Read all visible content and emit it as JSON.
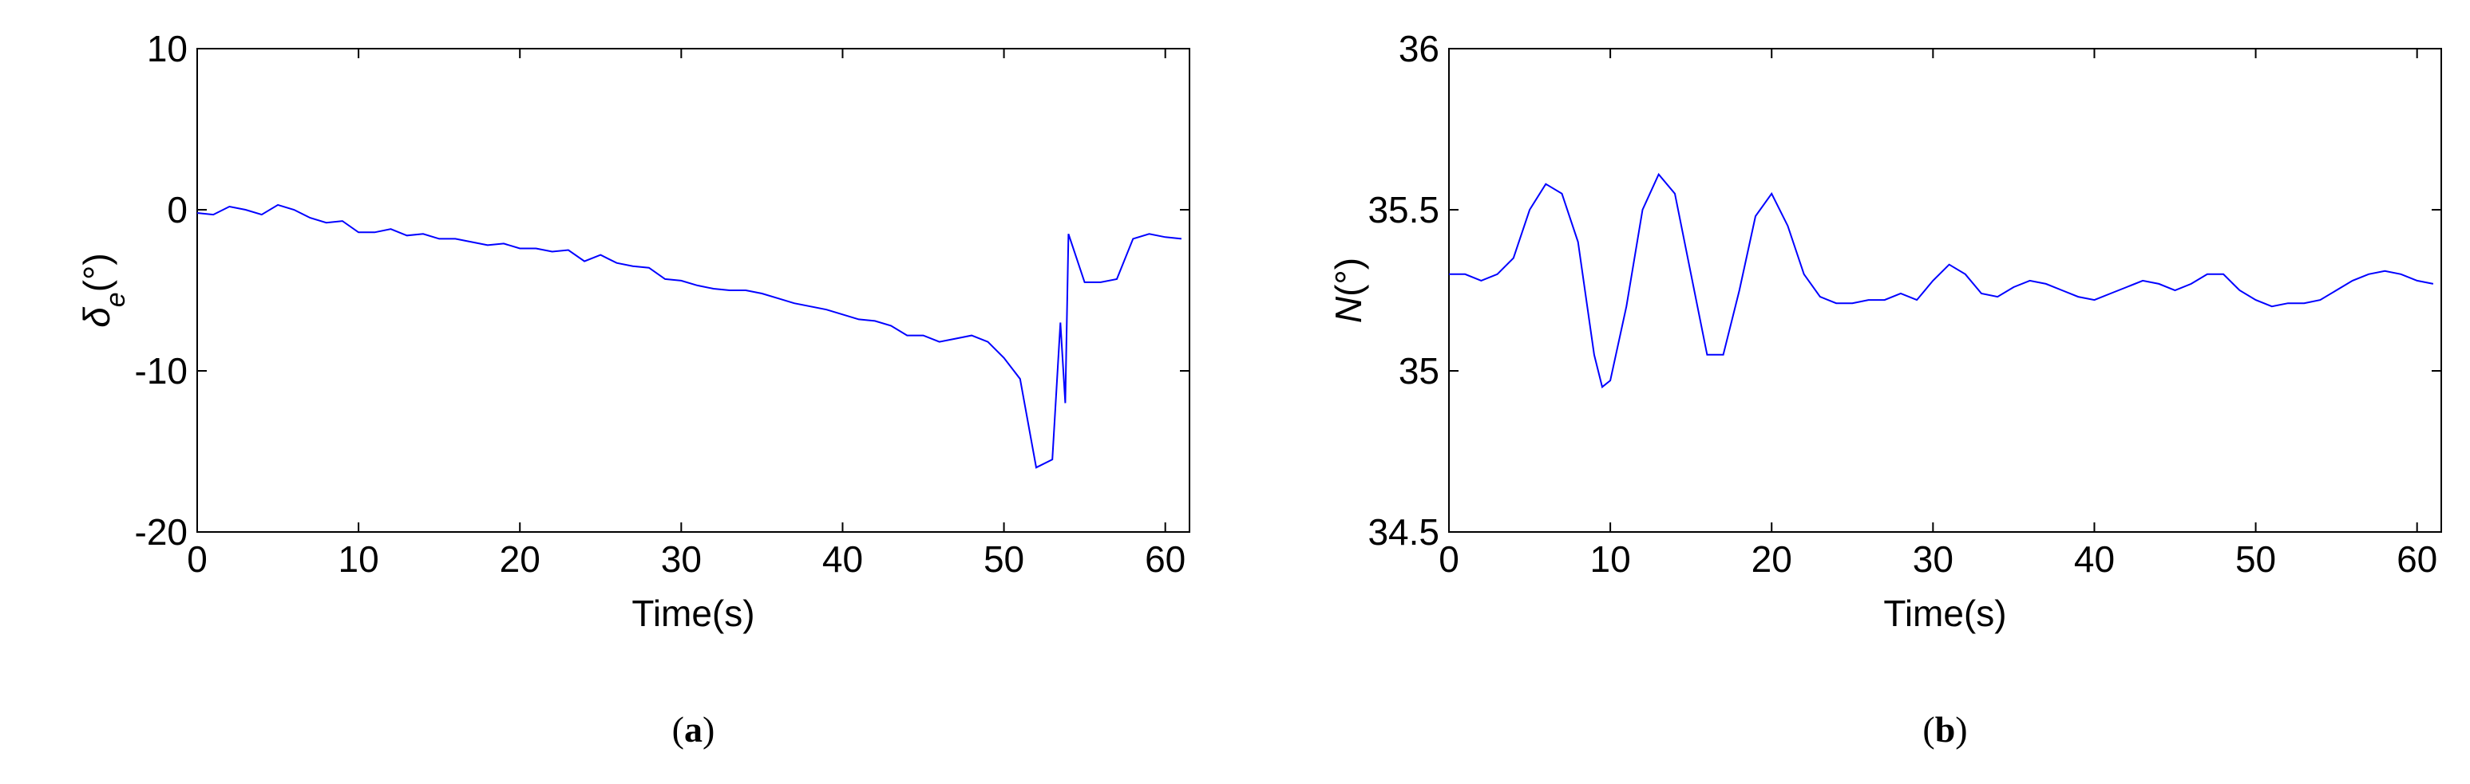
{
  "chart_data": [
    {
      "type": "line",
      "caption": "(a)",
      "xlabel": "Time(s)",
      "ylabel": [
        "δ",
        "e",
        "(°)"
      ],
      "xlim": [
        0,
        61.5
      ],
      "xticks": [
        0,
        10,
        20,
        30,
        40,
        50,
        60
      ],
      "ylim": [
        -20,
        10
      ],
      "yticks": [
        -20,
        -10,
        0,
        10
      ],
      "series": [
        {
          "color": "#0000ff",
          "x": [
            0,
            1,
            2,
            3,
            4,
            5,
            6,
            7,
            8,
            9,
            10,
            11,
            12,
            13,
            14,
            15,
            16,
            17,
            18,
            19,
            20,
            21,
            22,
            23,
            24,
            25,
            26,
            27,
            28,
            29,
            30,
            31,
            32,
            33,
            34,
            35,
            36,
            37,
            38,
            39,
            40,
            41,
            42,
            43,
            44,
            45,
            46,
            47,
            48,
            49,
            50,
            51,
            52,
            53,
            53.5,
            53.8,
            54,
            54.5,
            55,
            56,
            57,
            58,
            59,
            60,
            61
          ],
          "values": [
            -0.2,
            -0.3,
            0.2,
            0,
            -0.3,
            0.3,
            0,
            -0.5,
            -0.8,
            -0.7,
            -1.4,
            -1.4,
            -1.2,
            -1.6,
            -1.5,
            -1.8,
            -1.8,
            -2,
            -2.2,
            -2.1,
            -2.4,
            -2.4,
            -2.6,
            -2.5,
            -3.2,
            -2.8,
            -3.3,
            -3.5,
            -3.6,
            -4.3,
            -4.4,
            -4.7,
            -4.9,
            -5,
            -5,
            -5.2,
            -5.5,
            -5.8,
            -6,
            -6.2,
            -6.5,
            -6.8,
            -6.9,
            -7.2,
            -7.8,
            -7.8,
            -8.2,
            -8,
            -7.8,
            -8.2,
            -9.2,
            -10.5,
            -16,
            -15.5,
            -7,
            -12,
            -1.5,
            -3,
            -4.5,
            -4.5,
            -4.3,
            -1.8,
            -1.5,
            -1.7,
            -1.8
          ]
        }
      ]
    },
    {
      "type": "line",
      "caption": "(b)",
      "xlabel": "Time(s)",
      "ylabel": [
        "N",
        "(°)"
      ],
      "xlim": [
        0,
        61.5
      ],
      "xticks": [
        0,
        10,
        20,
        30,
        40,
        50,
        60
      ],
      "ylim": [
        34.5,
        36
      ],
      "yticks": [
        34.5,
        35,
        35.5,
        36
      ],
      "series": [
        {
          "color": "#0000ff",
          "x": [
            0,
            1,
            2,
            3,
            4,
            5,
            6,
            7,
            8,
            9,
            9.5,
            10,
            11,
            12,
            13,
            14,
            15,
            16,
            17,
            18,
            19,
            20,
            21,
            22,
            23,
            24,
            25,
            26,
            27,
            28,
            29,
            30,
            31,
            32,
            33,
            34,
            35,
            36,
            37,
            38,
            39,
            40,
            41,
            42,
            43,
            44,
            45,
            46,
            47,
            48,
            49,
            50,
            51,
            52,
            53,
            54,
            55,
            56,
            57,
            58,
            59,
            60,
            61
          ],
          "values": [
            35.3,
            35.3,
            35.28,
            35.3,
            35.35,
            35.5,
            35.58,
            35.55,
            35.4,
            35.05,
            34.95,
            34.97,
            35.2,
            35.5,
            35.61,
            35.55,
            35.3,
            35.05,
            35.05,
            35.25,
            35.48,
            35.55,
            35.45,
            35.3,
            35.23,
            35.21,
            35.21,
            35.22,
            35.22,
            35.24,
            35.22,
            35.28,
            35.33,
            35.3,
            35.24,
            35.23,
            35.26,
            35.28,
            35.27,
            35.25,
            35.23,
            35.22,
            35.24,
            35.26,
            35.28,
            35.27,
            35.25,
            35.27,
            35.3,
            35.3,
            35.25,
            35.22,
            35.2,
            35.21,
            35.21,
            35.22,
            35.25,
            35.28,
            35.3,
            35.31,
            35.3,
            35.28,
            35.27
          ]
        }
      ]
    }
  ]
}
